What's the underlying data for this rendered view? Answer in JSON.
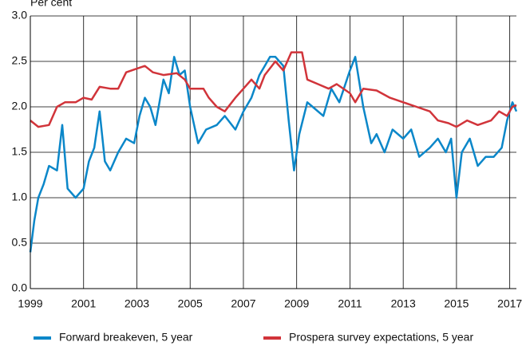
{
  "chart_data": {
    "type": "line",
    "y_label": "Per cent",
    "xlim": [
      1999,
      2017.25
    ],
    "xticks": [
      1999,
      2001,
      2003,
      2005,
      2007,
      2009,
      2011,
      2013,
      2015,
      2017
    ],
    "ylim": [
      0,
      3
    ],
    "yticks": [
      {
        "value": 0,
        "label": "0.0"
      },
      0.5,
      {
        "value": 1,
        "label": "1.0"
      },
      1.5,
      {
        "value": 2,
        "label": "2.0"
      },
      2.5,
      {
        "value": 3,
        "label": "3.0"
      }
    ],
    "grid": true,
    "legend": "bottom",
    "series": [
      {
        "name": "Forward breakeven, 5 year",
        "color": "#0b87c9",
        "x": [
          1999.0,
          1999.15,
          1999.3,
          1999.5,
          1999.7,
          2000.0,
          2000.2,
          2000.4,
          2000.7,
          2001.0,
          2001.2,
          2001.4,
          2001.6,
          2001.8,
          2002.0,
          2002.3,
          2002.6,
          2002.9,
          2003.1,
          2003.3,
          2003.5,
          2003.7,
          2004.0,
          2004.2,
          2004.4,
          2004.6,
          2004.8,
          2005.0,
          2005.3,
          2005.6,
          2006.0,
          2006.3,
          2006.7,
          2007.0,
          2007.3,
          2007.6,
          2007.8,
          2008.0,
          2008.2,
          2008.5,
          2008.7,
          2008.9,
          2009.1,
          2009.4,
          2009.6,
          2010.0,
          2010.3,
          2010.6,
          2011.0,
          2011.2,
          2011.5,
          2011.8,
          2012.0,
          2012.3,
          2012.6,
          2013.0,
          2013.3,
          2013.6,
          2014.0,
          2014.3,
          2014.6,
          2014.8,
          2015.0,
          2015.2,
          2015.5,
          2015.8,
          2016.1,
          2016.4,
          2016.7,
          2016.9,
          2017.1,
          2017.25
        ],
        "values": [
          0.4,
          0.75,
          1.0,
          1.15,
          1.35,
          1.3,
          1.8,
          1.1,
          1.0,
          1.1,
          1.4,
          1.55,
          1.95,
          1.4,
          1.3,
          1.5,
          1.65,
          1.6,
          1.9,
          2.1,
          2.0,
          1.8,
          2.3,
          2.15,
          2.55,
          2.35,
          2.4,
          2.0,
          1.6,
          1.75,
          1.8,
          1.9,
          1.75,
          1.95,
          2.1,
          2.35,
          2.45,
          2.55,
          2.55,
          2.45,
          1.85,
          1.3,
          1.7,
          2.05,
          2.0,
          1.9,
          2.2,
          2.05,
          2.4,
          2.55,
          2.0,
          1.6,
          1.7,
          1.5,
          1.75,
          1.65,
          1.75,
          1.45,
          1.55,
          1.65,
          1.5,
          1.65,
          1.0,
          1.5,
          1.65,
          1.35,
          1.45,
          1.45,
          1.55,
          1.85,
          2.05,
          1.95
        ]
      },
      {
        "name": "Prospera survey expectations, 5 year",
        "color": "#d1343a",
        "x": [
          1999.0,
          1999.3,
          1999.7,
          2000.0,
          2000.3,
          2000.7,
          2001.0,
          2001.3,
          2001.6,
          2002.0,
          2002.3,
          2002.6,
          2003.0,
          2003.3,
          2003.6,
          2004.0,
          2004.5,
          2004.8,
          2005.0,
          2005.5,
          2005.7,
          2006.0,
          2006.3,
          2006.7,
          2007.0,
          2007.3,
          2007.6,
          2007.8,
          2008.2,
          2008.5,
          2008.8,
          2009.2,
          2009.4,
          2009.8,
          2010.2,
          2010.5,
          2011.0,
          2011.2,
          2011.5,
          2012.0,
          2012.5,
          2013.0,
          2013.5,
          2014.0,
          2014.3,
          2014.7,
          2015.0,
          2015.4,
          2015.8,
          2016.3,
          2016.6,
          2016.9,
          2017.1,
          2017.25
        ],
        "values": [
          1.85,
          1.78,
          1.8,
          2.0,
          2.05,
          2.05,
          2.1,
          2.08,
          2.22,
          2.2,
          2.2,
          2.38,
          2.42,
          2.45,
          2.38,
          2.35,
          2.37,
          2.3,
          2.2,
          2.2,
          2.1,
          2.0,
          1.95,
          2.1,
          2.2,
          2.3,
          2.2,
          2.35,
          2.5,
          2.4,
          2.6,
          2.6,
          2.3,
          2.25,
          2.2,
          2.25,
          2.15,
          2.05,
          2.2,
          2.18,
          2.1,
          2.05,
          2.0,
          1.95,
          1.85,
          1.82,
          1.78,
          1.85,
          1.8,
          1.85,
          1.95,
          1.9,
          2.0,
          2.02
        ]
      }
    ]
  }
}
